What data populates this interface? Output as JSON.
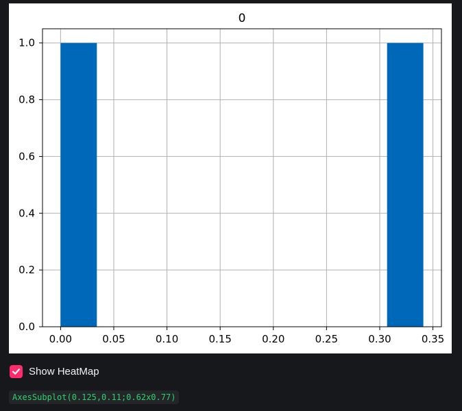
{
  "chart_data": {
    "type": "bar",
    "title": "0",
    "xlabel": "",
    "ylabel": "",
    "xlim": [
      -0.017,
      0.358
    ],
    "ylim": [
      0,
      1.05
    ],
    "x_ticks": [
      "0.00",
      "0.05",
      "0.10",
      "0.15",
      "0.20",
      "0.25",
      "0.30",
      "0.35"
    ],
    "x_tick_values": [
      0.0,
      0.05,
      0.1,
      0.15,
      0.2,
      0.25,
      0.3,
      0.35
    ],
    "y_ticks": [
      "0.0",
      "0.2",
      "0.4",
      "0.6",
      "0.8",
      "1.0"
    ],
    "y_tick_values": [
      0.0,
      0.2,
      0.4,
      0.6,
      0.8,
      1.0
    ],
    "grid": true,
    "bar_color": "#0068b9",
    "bins": [
      {
        "x0": 0.0,
        "x1": 0.0341,
        "value": 1
      },
      {
        "x0": 0.0341,
        "x1": 0.0682,
        "value": 0
      },
      {
        "x0": 0.0682,
        "x1": 0.1023,
        "value": 0
      },
      {
        "x0": 0.1023,
        "x1": 0.1364,
        "value": 0
      },
      {
        "x0": 0.1364,
        "x1": 0.1705,
        "value": 0
      },
      {
        "x0": 0.1705,
        "x1": 0.2046,
        "value": 0
      },
      {
        "x0": 0.2046,
        "x1": 0.2387,
        "value": 0
      },
      {
        "x0": 0.2387,
        "x1": 0.2728,
        "value": 0
      },
      {
        "x0": 0.2728,
        "x1": 0.3069,
        "value": 0
      },
      {
        "x0": 0.3069,
        "x1": 0.341,
        "value": 1
      }
    ]
  },
  "controls": {
    "heatmap_label": "Show HeatMap",
    "heatmap_checked": true,
    "checkbox_color": "#ff2b6a"
  },
  "output": {
    "text": "AxesSubplot(0.125,0.11;0.62x0.77)",
    "color": "#2bd36c"
  }
}
